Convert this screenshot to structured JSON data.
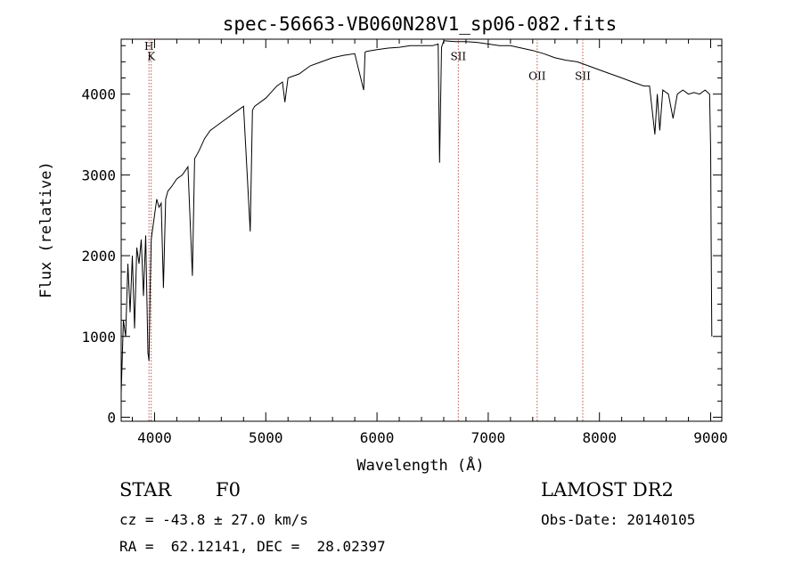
{
  "chart_data": {
    "type": "line",
    "title": "spec-56663-VB060N28V1_sp06-082.fits",
    "xlabel": "Wavelength (Å)",
    "ylabel": "Flux (relative)",
    "xlim": [
      3700,
      9100
    ],
    "ylim": [
      -50,
      4680
    ],
    "x_ticks": [
      4000,
      5000,
      6000,
      7000,
      8000,
      9000
    ],
    "y_ticks": [
      0,
      1000,
      2000,
      3000,
      4000
    ],
    "grid": false,
    "series": [
      {
        "x": [
          3700,
          3720,
          3740,
          3760,
          3780,
          3800,
          3820,
          3840,
          3860,
          3880,
          3900,
          3920,
          3940,
          3950,
          3960,
          3970,
          3980,
          4000,
          4020,
          4040,
          4060,
          4080,
          4100,
          4120,
          4150,
          4200,
          4250,
          4300,
          4340,
          4360,
          4400,
          4450,
          4500,
          4550,
          4600,
          4650,
          4700,
          4750,
          4800,
          4860,
          4880,
          4900,
          5000,
          5100,
          5150,
          5172,
          5200,
          5300,
          5400,
          5500,
          5600,
          5700,
          5800,
          5880,
          5893,
          5910,
          6000,
          6100,
          6200,
          6300,
          6400,
          6500,
          6550,
          6563,
          6580,
          6600,
          6700,
          6800,
          6900,
          7000,
          7100,
          7200,
          7300,
          7400,
          7500,
          7600,
          7700,
          7800,
          7900,
          8000,
          8100,
          8200,
          8300,
          8400,
          8450,
          8498,
          8520,
          8542,
          8570,
          8620,
          8662,
          8700,
          8750,
          8800,
          8850,
          8900,
          8950,
          8990,
          9000,
          9005,
          9010
        ],
        "values": [
          300,
          1200,
          1000,
          1900,
          1300,
          2000,
          1100,
          2100,
          1900,
          2200,
          1500,
          2250,
          800,
          700,
          1600,
          2200,
          2300,
          2500,
          2700,
          2600,
          2650,
          1600,
          2700,
          2800,
          2850,
          2950,
          3000,
          3100,
          1750,
          3200,
          3300,
          3450,
          3550,
          3600,
          3650,
          3700,
          3750,
          3800,
          3850,
          2300,
          3800,
          3850,
          3950,
          4100,
          4150,
          3900,
          4200,
          4250,
          4350,
          4400,
          4450,
          4480,
          4500,
          4050,
          4520,
          4530,
          4550,
          4570,
          4580,
          4600,
          4600,
          4600,
          4620,
          3150,
          4580,
          4660,
          4650,
          4650,
          4640,
          4620,
          4600,
          4600,
          4570,
          4540,
          4500,
          4450,
          4420,
          4400,
          4350,
          4300,
          4250,
          4200,
          4150,
          4100,
          4100,
          3500,
          4000,
          3550,
          4050,
          4000,
          3700,
          4000,
          4050,
          4000,
          4020,
          4000,
          4050,
          4000,
          3300,
          2100,
          1000
        ]
      }
    ],
    "lines": [
      {
        "x": 3950,
        "label": "H",
        "label_y": 4550
      },
      {
        "x": 3970,
        "label": "K",
        "label_y": 4420
      },
      {
        "x": 6731,
        "label": "SII",
        "label_y": 4420
      },
      {
        "x": 7440,
        "label": "OII",
        "label_y": 4180
      },
      {
        "x": 7850,
        "label": "SII",
        "label_y": 4180
      }
    ]
  },
  "info": {
    "object_type": "STAR",
    "spectral_class": "F0",
    "survey": "LAMOST DR2",
    "cz": "cz = -43.8 ± 27.0 km/s",
    "obs_date": "Obs-Date: 20140105",
    "coords": "RA =  62.12141, DEC =  28.02397"
  },
  "colors": {
    "line": "#000000",
    "marker_line": "#c0504d",
    "frame": "#000000"
  }
}
